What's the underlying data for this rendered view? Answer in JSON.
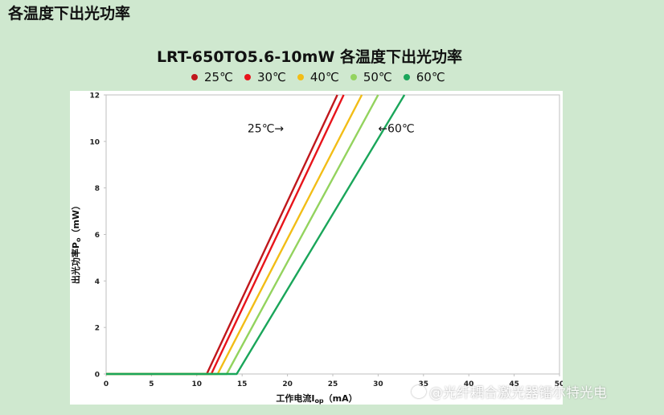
{
  "page": {
    "title": "各温度下出光功率"
  },
  "watermark": {
    "text": "@光纤耦合激光器镭尔特光电"
  },
  "chart_data": {
    "type": "line",
    "title": "LRT-650TO5.6-10mW 各温度下出光功率",
    "xlabel": "工作电流I",
    "xlabel_sub": "op",
    "xlabel_unit": "（mA）",
    "ylabel": "出光功率P",
    "ylabel_sub": "o",
    "ylabel_unit": "（mW）",
    "xlim": [
      0,
      50
    ],
    "ylim": [
      0,
      12
    ],
    "xticks": [
      0,
      5,
      10,
      15,
      20,
      25,
      30,
      35,
      40,
      45,
      50
    ],
    "xtick_labels": [
      "0",
      "5",
      "10",
      "15",
      "20",
      "25",
      "30",
      "35",
      "40",
      "45",
      "50"
    ],
    "yticks": [
      0,
      2,
      4,
      6,
      8,
      10,
      12
    ],
    "ytick_labels": [
      "0",
      "2",
      "4",
      "6",
      "8",
      "10",
      "12"
    ],
    "grid": false,
    "legend_position": "top",
    "series": [
      {
        "name": "25℃",
        "color": "#c0171c",
        "x": [
          0,
          11.1,
          25.5
        ],
        "y": [
          0,
          0,
          12
        ]
      },
      {
        "name": "30℃",
        "color": "#e8141b",
        "x": [
          0,
          11.6,
          26.2
        ],
        "y": [
          0,
          0,
          12
        ]
      },
      {
        "name": "40℃",
        "color": "#f2bd16",
        "x": [
          0,
          12.3,
          28.2
        ],
        "y": [
          0,
          0,
          12
        ]
      },
      {
        "name": "50℃",
        "color": "#93d35e",
        "x": [
          0,
          13.3,
          30.0
        ],
        "y": [
          0,
          0,
          12
        ]
      },
      {
        "name": "60℃",
        "color": "#1aa65a",
        "x": [
          0,
          14.4,
          32.9
        ],
        "y": [
          0,
          0,
          12
        ]
      }
    ],
    "annotations": [
      {
        "text": "25℃→",
        "x": 17.6,
        "y": 10.4
      },
      {
        "text": "←60℃",
        "x": 32.0,
        "y": 10.4
      }
    ]
  }
}
